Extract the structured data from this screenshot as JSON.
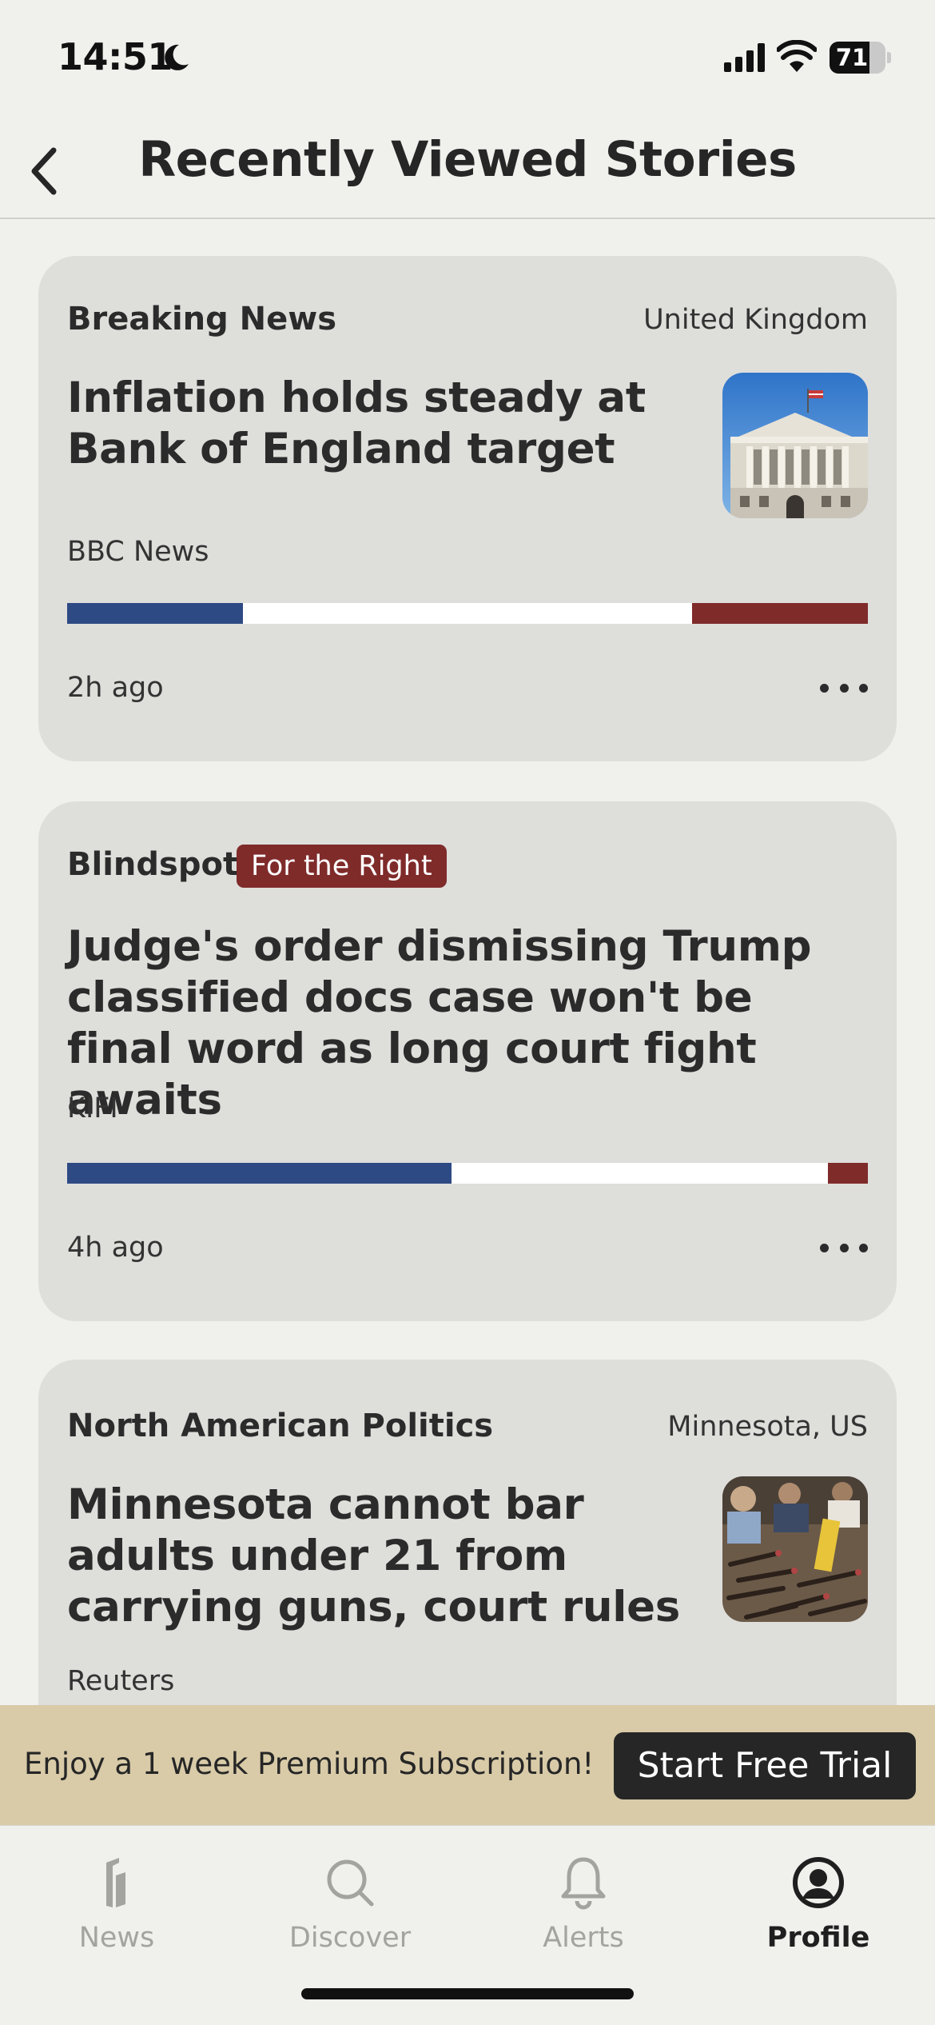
{
  "status_bar": {
    "time": "14:51",
    "battery_level": "71",
    "battery_fraction": 0.71,
    "icons": [
      "moon-icon",
      "signal-icon",
      "wifi-icon",
      "battery-icon"
    ]
  },
  "header": {
    "title": "Recently Viewed Stories",
    "back_icon": "chevron-left-icon"
  },
  "colors": {
    "left": "#2e4a84",
    "center": "#ffffff",
    "right": "#7f2b2a",
    "promo_bg": "#d9cba8"
  },
  "stories": [
    {
      "category": "Breaking News",
      "location": "United Kingdom",
      "headline": "Inflation holds steady at Bank of England target",
      "source": "BBC News",
      "time": "2h ago",
      "bias": {
        "left": 0.22,
        "center": 0.56,
        "right": 0.22
      },
      "thumbnail": "bank-of-england-photo"
    },
    {
      "blindspot_label": "Blindspot:",
      "blindspot_badge": "For the Right",
      "headline": "Judge's order dismissing Trump classified docs case won't be final word as long court fight awaits",
      "source": "KIFI",
      "time": "4h ago",
      "bias": {
        "left": 0.48,
        "center": 0.47,
        "right": 0.05
      }
    },
    {
      "category": "North American Politics",
      "location": "Minnesota, US",
      "headline": "Minnesota cannot bar adults under 21 from carrying guns, court rules",
      "source": "Reuters",
      "thumbnail": "guns-photo"
    }
  ],
  "promo": {
    "text": "Enjoy a 1 week Premium Subscription!",
    "button": "Start Free Trial"
  },
  "tabs": [
    {
      "label": "News",
      "icon": "ground-news-logo-icon",
      "active": false
    },
    {
      "label": "Discover",
      "icon": "search-icon",
      "active": false
    },
    {
      "label": "Alerts",
      "icon": "bell-icon",
      "active": false
    },
    {
      "label": "Profile",
      "icon": "profile-icon",
      "active": true
    }
  ]
}
